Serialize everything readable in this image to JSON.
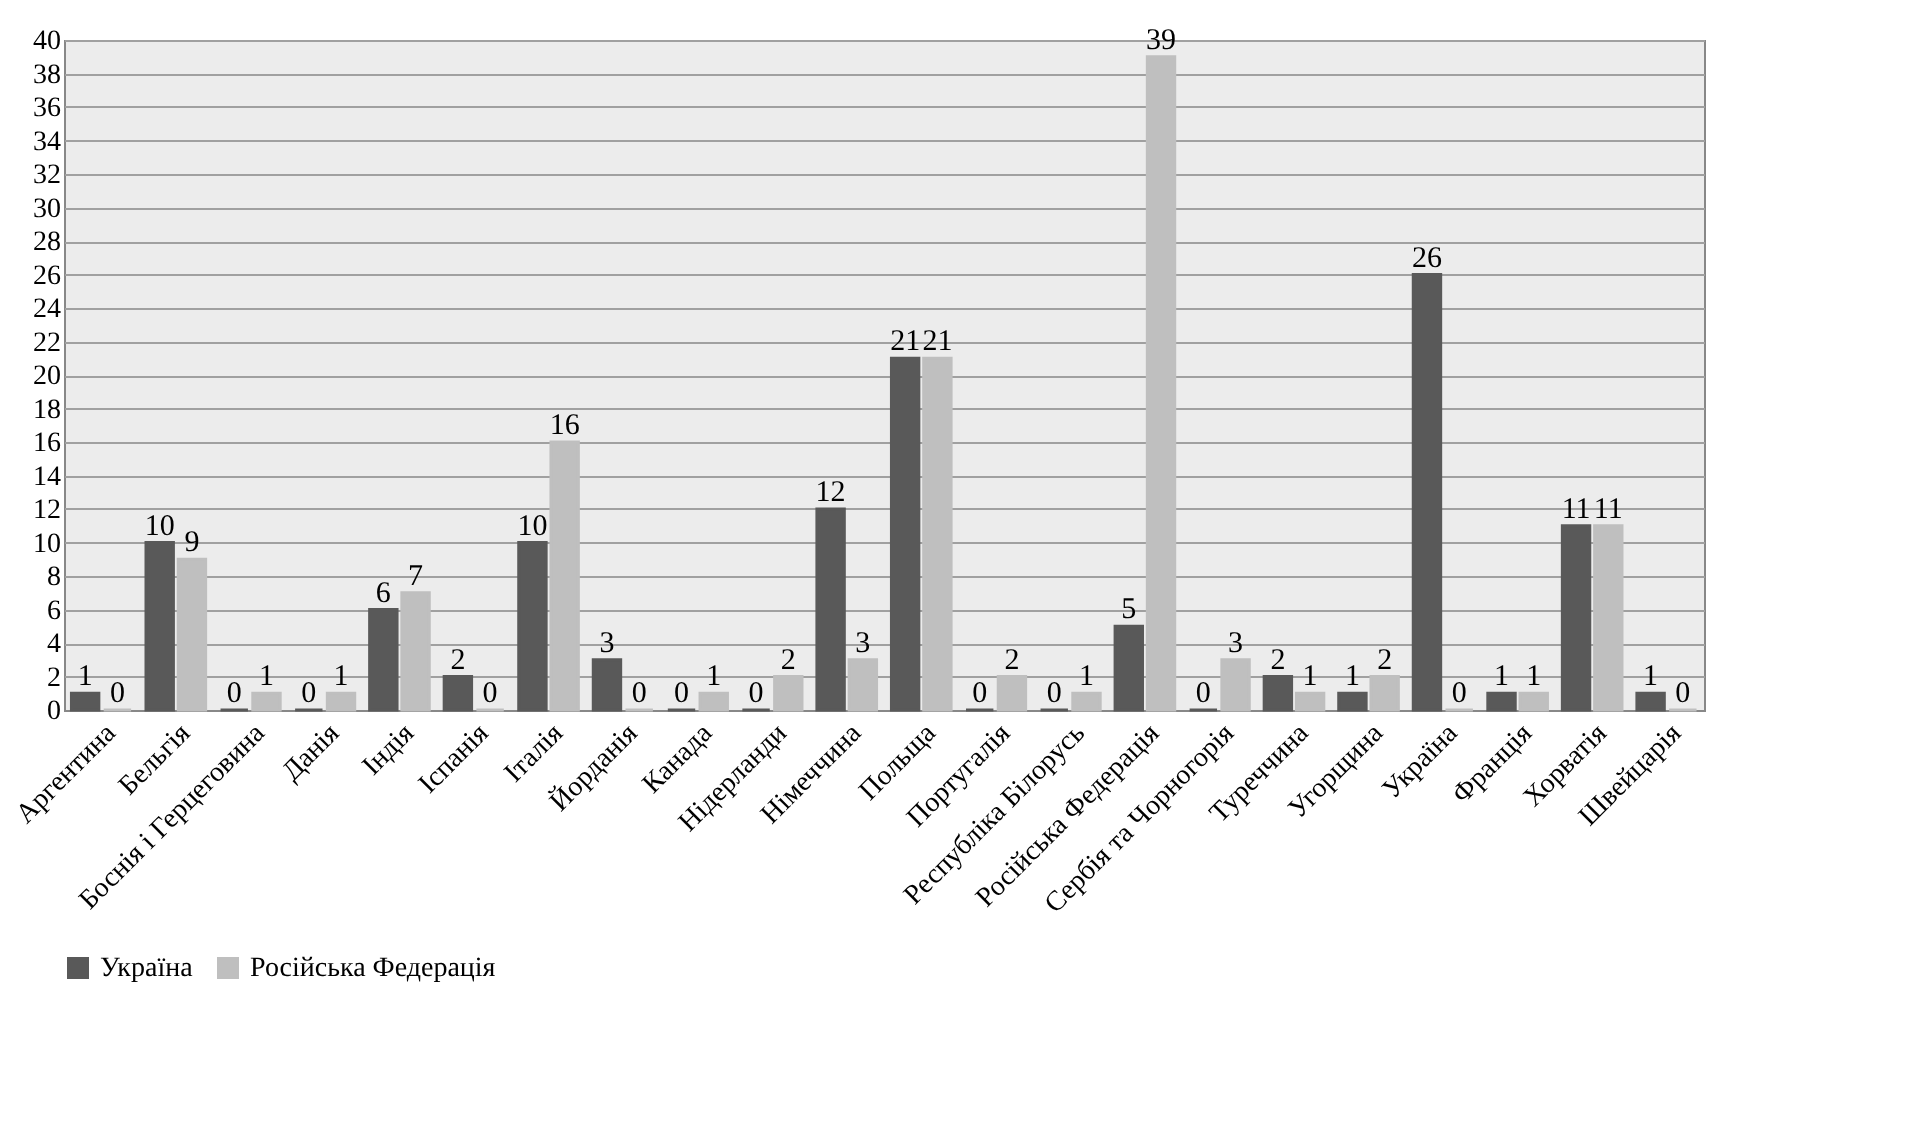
{
  "chart_data": {
    "type": "bar",
    "categories": [
      "Аргентина",
      "Бельгія",
      "Боснія і Герцеговина",
      "Данія",
      "Індія",
      "Іспанія",
      "Італія",
      "Йорданія",
      "Канада",
      "Нідерланди",
      "Німеччина",
      "Польща",
      "Португалія",
      "Республіка Білорусь",
      "Російська Федерація",
      "Сербія та Чорногорія",
      "Туреччина",
      "Угорщина",
      "Україна",
      "Франція",
      "Хорватія",
      "Швейцарія"
    ],
    "series": [
      {
        "name": "Україна",
        "color": "#595959",
        "values": [
          1,
          10,
          0,
          0,
          6,
          2,
          10,
          3,
          0,
          0,
          12,
          21,
          0,
          0,
          5,
          0,
          2,
          1,
          26,
          1,
          11,
          1
        ]
      },
      {
        "name": "Російська Федерація",
        "color": "#bfbfbf",
        "values": [
          0,
          9,
          1,
          1,
          7,
          0,
          16,
          0,
          1,
          2,
          3,
          21,
          2,
          1,
          39,
          3,
          1,
          2,
          0,
          1,
          11,
          0
        ]
      }
    ],
    "ylim": [
      0,
      40
    ],
    "yticks": [
      0,
      2,
      4,
      6,
      8,
      10,
      12,
      14,
      16,
      18,
      20,
      22,
      24,
      26,
      28,
      30,
      32,
      34,
      36,
      38,
      40
    ],
    "grid": "y",
    "legend": "bottom",
    "data_labels": true
  }
}
